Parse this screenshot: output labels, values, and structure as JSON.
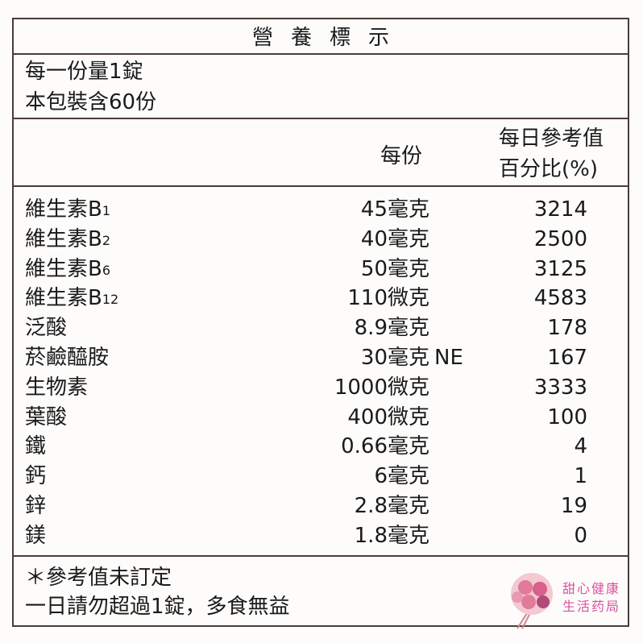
{
  "title": "營養標示",
  "serving": [
    "每一份量1錠",
    "本包裝含60份"
  ],
  "header": {
    "per_serving": "每份",
    "daily_value_line1": "每日參考值",
    "daily_value_line2": "百分比(%)"
  },
  "rows": [
    {
      "name": "維生素B",
      "sub": "1",
      "amount": "45毫克",
      "extra": "",
      "percent": "3214"
    },
    {
      "name": "維生素B",
      "sub": "2",
      "amount": "40毫克",
      "extra": "",
      "percent": "2500"
    },
    {
      "name": "維生素B",
      "sub": "6",
      "amount": "50毫克",
      "extra": "",
      "percent": "3125"
    },
    {
      "name": "維生素B",
      "sub": "12",
      "amount": "110微克",
      "extra": "",
      "percent": "4583"
    },
    {
      "name": "泛酸",
      "sub": "",
      "amount": "8.9毫克",
      "extra": "",
      "percent": "178"
    },
    {
      "name": "菸鹼醯胺",
      "sub": "",
      "amount": "30毫克",
      "extra": "NE",
      "percent": "167"
    },
    {
      "name": "生物素",
      "sub": "",
      "amount": "1000微克",
      "extra": "",
      "percent": "3333"
    },
    {
      "name": "葉酸",
      "sub": "",
      "amount": "400微克",
      "extra": "",
      "percent": "100"
    },
    {
      "name": "鐵",
      "sub": "",
      "amount": "0.66毫克",
      "extra": "",
      "percent": "4"
    },
    {
      "name": "鈣",
      "sub": "",
      "amount": "6毫克",
      "extra": "",
      "percent": "1"
    },
    {
      "name": "鋅",
      "sub": "",
      "amount": "2.8毫克",
      "extra": "",
      "percent": "19"
    },
    {
      "name": "鎂",
      "sub": "",
      "amount": "1.8毫克",
      "extra": "",
      "percent": "0"
    }
  ],
  "footer": [
    "＊參考值未訂定",
    "一日請勿超過1錠，多食無益"
  ],
  "watermark": {
    "line1": "甜心健康",
    "line2": "生活药局",
    "color": "#d9509c"
  },
  "colors": {
    "border": "#4a3c34",
    "text": "#1a1a1a"
  }
}
